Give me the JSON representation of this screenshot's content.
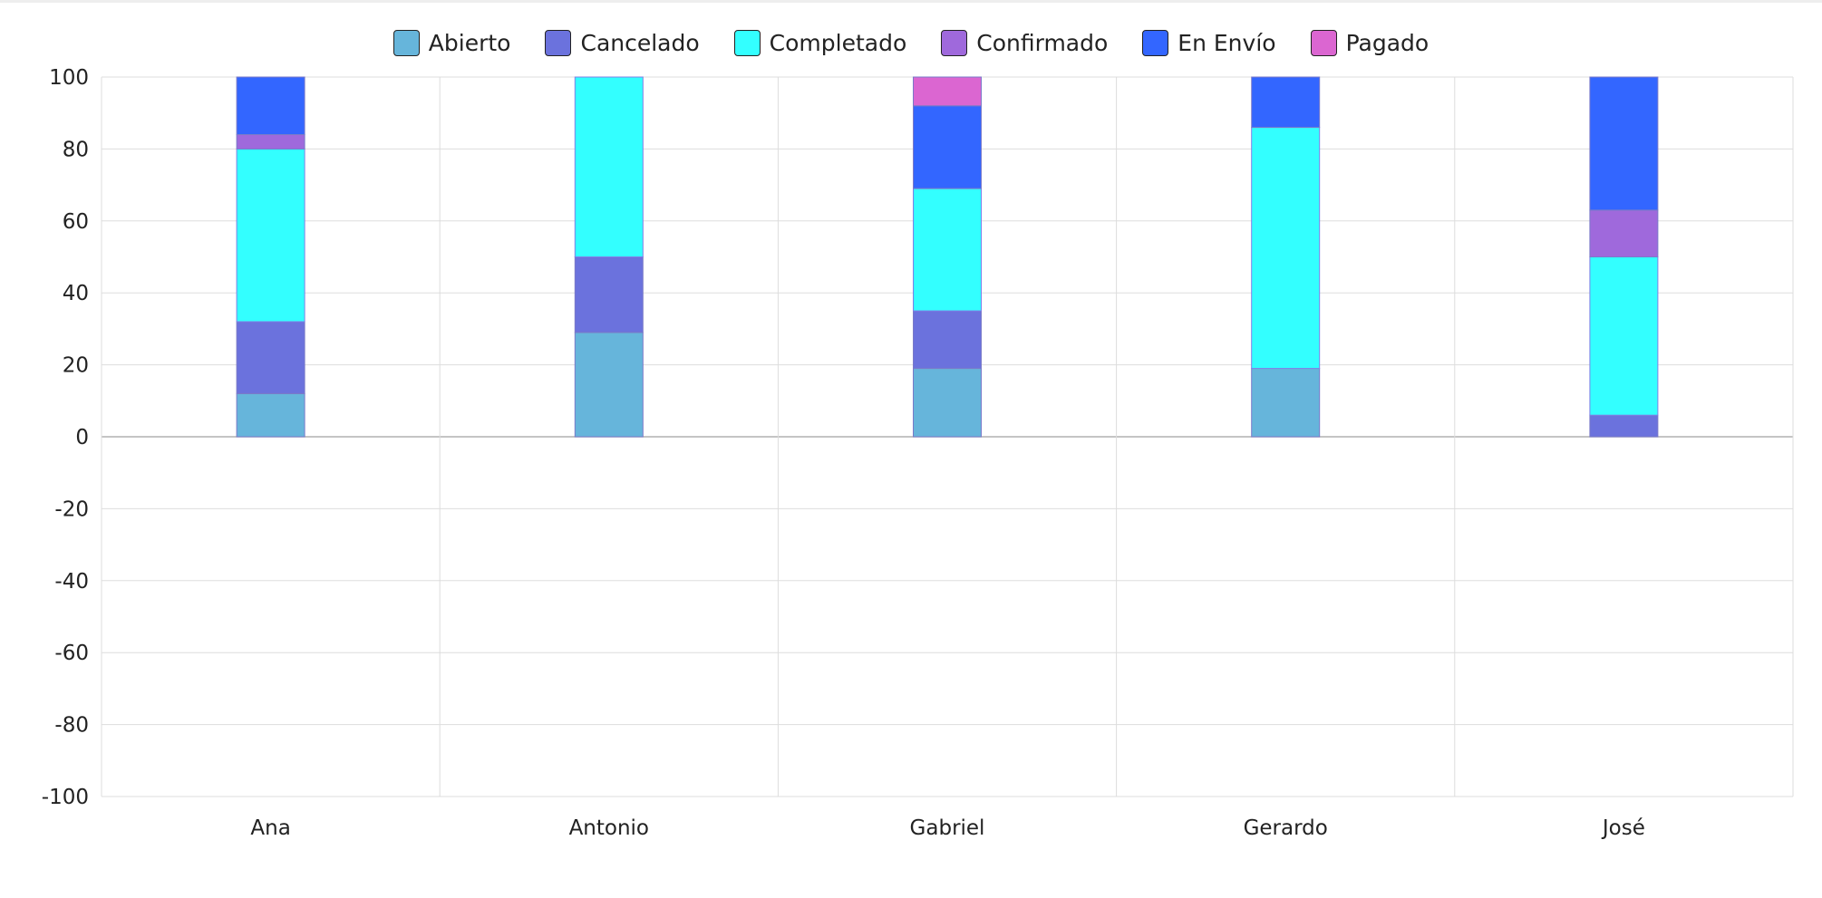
{
  "chart_data": {
    "type": "bar",
    "stacked": true,
    "title": "",
    "xlabel": "",
    "ylabel": "",
    "categories": [
      "Ana",
      "Antonio",
      "Gabriel",
      "Gerardo",
      "José"
    ],
    "ylim": [
      -100,
      100
    ],
    "yticks": [
      100,
      80,
      60,
      40,
      20,
      0,
      -20,
      -40,
      -60,
      -80,
      -100
    ],
    "grid": true,
    "legend_position": "top-center",
    "series": [
      {
        "name": "Abierto",
        "color": "#66b5db",
        "values": [
          12,
          29,
          19,
          19,
          0
        ]
      },
      {
        "name": "Cancelado",
        "color": "#6b72dd",
        "values": [
          20,
          21,
          16,
          0,
          6
        ]
      },
      {
        "name": "Completado",
        "color": "#33ffff",
        "values": [
          48,
          50,
          34,
          67,
          44
        ]
      },
      {
        "name": "Confirmado",
        "color": "#9f69dc",
        "values": [
          4,
          0,
          0,
          0,
          13
        ]
      },
      {
        "name": "En Envío",
        "color": "#3366ff",
        "values": [
          16,
          0,
          23,
          14,
          37
        ]
      },
      {
        "name": "Pagado",
        "color": "#db66d1",
        "values": [
          0,
          0,
          8,
          0,
          0
        ]
      }
    ]
  }
}
